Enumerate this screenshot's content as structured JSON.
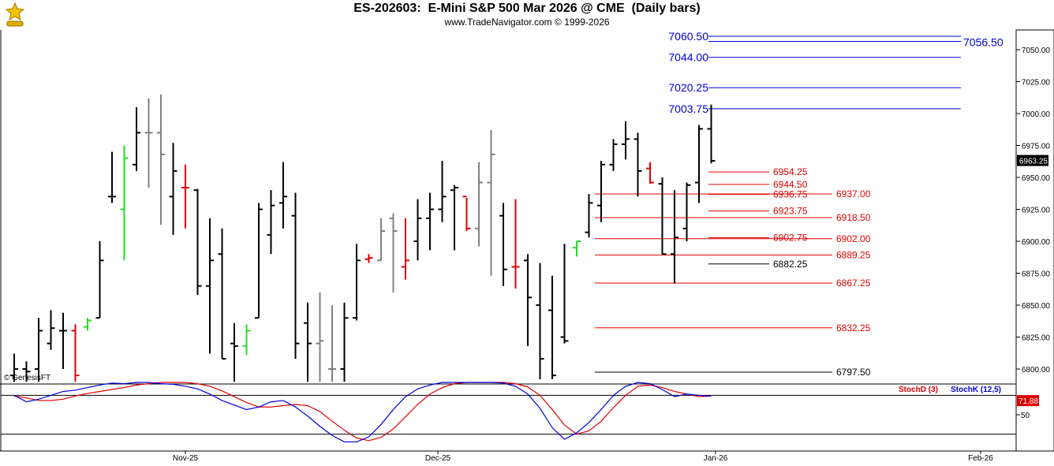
{
  "header": {
    "title": "ES-202603:  E-Mini S&P 500 Mar 2026 @ CME  (Daily bars)",
    "subtitle": "www.TradeNavigator.com © 1999-2026",
    "logo": "trade-navigator-logo"
  },
  "watermark": "© GenesisFT",
  "colors": {
    "up_bar": "#000000",
    "down_bar": "#000000",
    "neutral_bar": "#808080",
    "green_bar": "#22dd22",
    "red_bar": "#e00000",
    "blue_level": "#0000dd",
    "red_level": "#e00000",
    "black_level": "#000000",
    "stochD": "#dd0000",
    "stochK": "#0000dd"
  },
  "chart_data": [
    {
      "type": "ohlc",
      "title": "ES-202603:  E-Mini S&P 500 Mar 2026 @ CME  (Daily bars)",
      "ylim": [
        6790,
        7060
      ],
      "y_ticks": [
        "6800.00",
        "6825.00",
        "6850.00",
        "6875.00",
        "6900.00",
        "6925.00",
        "6950.00",
        "6975.00",
        "7000.00",
        "7025.00",
        "7050.00"
      ],
      "x_tick_labels": [
        "Nov-25",
        "Dec-25",
        "Jan-26",
        "Feb-26"
      ],
      "last_price": "6963.25",
      "bars": [
        {
          "h": 6812,
          "l": 6790,
          "o": 6795,
          "c": 6800,
          "color": "black"
        },
        {
          "h": 6806,
          "l": 6790,
          "o": 6800,
          "c": 6798,
          "color": "black"
        },
        {
          "h": 6840,
          "l": 6790,
          "o": 6800,
          "c": 6830,
          "color": "black"
        },
        {
          "h": 6846,
          "l": 6815,
          "o": 6820,
          "c": 6832,
          "color": "black"
        },
        {
          "h": 6844,
          "l": 6800,
          "o": 6830,
          "c": 6830,
          "color": "black"
        },
        {
          "h": 6835,
          "l": 6790,
          "o": 6830,
          "c": 6795,
          "color": "red"
        },
        {
          "h": 6840,
          "l": 6830,
          "o": 6833,
          "c": 6838,
          "color": "green"
        },
        {
          "h": 6900,
          "l": 6840,
          "o": 6840,
          "c": 6885,
          "color": "black"
        },
        {
          "h": 6970,
          "l": 6930,
          "o": 6935,
          "c": 6935,
          "color": "black"
        },
        {
          "h": 6975,
          "l": 6885,
          "o": 6925,
          "c": 6965,
          "color": "green"
        },
        {
          "h": 7005,
          "l": 6955,
          "o": 6960,
          "c": 6985,
          "color": "black"
        },
        {
          "h": 7012,
          "l": 6942,
          "o": 6985,
          "c": 6985,
          "color": "gray"
        },
        {
          "h": 7015,
          "l": 6913,
          "o": 6985,
          "c": 6968,
          "color": "gray"
        },
        {
          "h": 6977,
          "l": 6905,
          "o": 6935,
          "c": 6955,
          "color": "black"
        },
        {
          "h": 6960,
          "l": 6910,
          "o": 6942,
          "c": 6942,
          "color": "red"
        },
        {
          "h": 6941,
          "l": 6858,
          "o": 6940,
          "c": 6865,
          "color": "black"
        },
        {
          "h": 6918,
          "l": 6812,
          "o": 6865,
          "c": 6885,
          "color": "black"
        },
        {
          "h": 6910,
          "l": 6808,
          "o": 6890,
          "c": 6808,
          "color": "black"
        },
        {
          "h": 6836,
          "l": 6790,
          "o": 6820,
          "c": 6818,
          "color": "black"
        },
        {
          "h": 6835,
          "l": 6811,
          "o": 6818,
          "c": 6830,
          "color": "green"
        },
        {
          "h": 6930,
          "l": 6840,
          "o": 6840,
          "c": 6925,
          "color": "black"
        },
        {
          "h": 6940,
          "l": 6890,
          "o": 6905,
          "c": 6928,
          "color": "black"
        },
        {
          "h": 6962,
          "l": 6910,
          "o": 6930,
          "c": 6935,
          "color": "black"
        },
        {
          "h": 6938,
          "l": 6808,
          "o": 6920,
          "c": 6820,
          "color": "black"
        },
        {
          "h": 6852,
          "l": 6790,
          "o": 6836,
          "c": 6820,
          "color": "black"
        },
        {
          "h": 6860,
          "l": 6790,
          "o": 6820,
          "c": 6822,
          "color": "gray"
        },
        {
          "h": 6850,
          "l": 6790,
          "o": 6800,
          "c": 6800,
          "color": "gray"
        },
        {
          "h": 6852,
          "l": 6790,
          "o": 6800,
          "c": 6840,
          "color": "black"
        },
        {
          "h": 6898,
          "l": 6838,
          "o": 6840,
          "c": 6885,
          "color": "black"
        },
        {
          "h": 6890,
          "l": 6883,
          "o": 6886,
          "c": 6887,
          "color": "red"
        },
        {
          "h": 6918,
          "l": 6885,
          "o": 6885,
          "c": 6908,
          "color": "gray"
        },
        {
          "h": 6922,
          "l": 6860,
          "o": 6918,
          "c": 6908,
          "color": "gray"
        },
        {
          "h": 6918,
          "l": 6870,
          "o": 6880,
          "c": 6885,
          "color": "red"
        },
        {
          "h": 6933,
          "l": 6885,
          "o": 6900,
          "c": 6918,
          "color": "black"
        },
        {
          "h": 6938,
          "l": 6893,
          "o": 6918,
          "c": 6925,
          "color": "black"
        },
        {
          "h": 6963,
          "l": 6915,
          "o": 6925,
          "c": 6935,
          "color": "black"
        },
        {
          "h": 6944,
          "l": 6893,
          "o": 6940,
          "c": 6942,
          "color": "black"
        },
        {
          "h": 6934,
          "l": 6908,
          "o": 6935,
          "c": 6910,
          "color": "red"
        },
        {
          "h": 6962,
          "l": 6896,
          "o": 6910,
          "c": 6946,
          "color": "gray"
        },
        {
          "h": 6987,
          "l": 6873,
          "o": 6946,
          "c": 6968,
          "color": "gray"
        },
        {
          "h": 6930,
          "l": 6865,
          "o": 6920,
          "c": 6878,
          "color": "black"
        },
        {
          "h": 6933,
          "l": 6863,
          "o": 6880,
          "c": 6880,
          "color": "red"
        },
        {
          "h": 6890,
          "l": 6818,
          "o": 6885,
          "c": 6856,
          "color": "black"
        },
        {
          "h": 6883,
          "l": 6792,
          "o": 6850,
          "c": 6808,
          "color": "black"
        },
        {
          "h": 6873,
          "l": 6792,
          "o": 6846,
          "c": 6795,
          "color": "black"
        },
        {
          "h": 6898,
          "l": 6820,
          "o": 6825,
          "c": 6822,
          "color": "black"
        },
        {
          "h": 6900,
          "l": 6888,
          "o": 6895,
          "c": 6900,
          "color": "green"
        },
        {
          "h": 6937,
          "l": 6903,
          "o": 6907,
          "c": 6930,
          "color": "black"
        },
        {
          "h": 6963,
          "l": 6915,
          "o": 6928,
          "c": 6960,
          "color": "black"
        },
        {
          "h": 6980,
          "l": 6955,
          "o": 6960,
          "c": 6976,
          "color": "black"
        },
        {
          "h": 6994,
          "l": 6964,
          "o": 6976,
          "c": 6980,
          "color": "black"
        },
        {
          "h": 6985,
          "l": 6935,
          "o": 6980,
          "c": 6955,
          "color": "black"
        },
        {
          "h": 6962,
          "l": 6945,
          "o": 6957,
          "c": 6946,
          "color": "red"
        },
        {
          "h": 6950,
          "l": 6890,
          "o": 6945,
          "c": 6890,
          "color": "black"
        },
        {
          "h": 6940,
          "l": 6867,
          "o": 6890,
          "c": 6903,
          "color": "black"
        },
        {
          "h": 6946,
          "l": 6900,
          "o": 6910,
          "c": 6944,
          "color": "black"
        },
        {
          "h": 6991,
          "l": 6930,
          "o": 6946,
          "c": 6988,
          "color": "black"
        },
        {
          "h": 7007,
          "l": 6961,
          "o": 6988,
          "c": 6963,
          "color": "black"
        }
      ],
      "levels": [
        {
          "label": "7060.50",
          "value": 7060.5,
          "color": "blue"
        },
        {
          "label": "7056.50",
          "value": 7056.5,
          "color": "blue"
        },
        {
          "label": "7044.00",
          "value": 7044.0,
          "color": "blue"
        },
        {
          "label": "7020.25",
          "value": 7020.25,
          "color": "blue"
        },
        {
          "label": "7003.75",
          "value": 7003.75,
          "color": "blue"
        },
        {
          "label": "6954.25",
          "value": 6954.25,
          "color": "red"
        },
        {
          "label": "6944.50",
          "value": 6944.5,
          "color": "red"
        },
        {
          "label": "6936.75",
          "value": 6936.75,
          "color": "red"
        },
        {
          "label": "6937.00",
          "value": 6937.0,
          "color": "red"
        },
        {
          "label": "6923.75",
          "value": 6923.75,
          "color": "red"
        },
        {
          "label": "6918.50",
          "value": 6918.5,
          "color": "red"
        },
        {
          "label": "6902.75",
          "value": 6902.75,
          "color": "red"
        },
        {
          "label": "6902.00",
          "value": 6902.0,
          "color": "red"
        },
        {
          "label": "6889.25",
          "value": 6889.25,
          "color": "red"
        },
        {
          "label": "6882.25",
          "value": 6882.25,
          "color": "black"
        },
        {
          "label": "6867.25",
          "value": 6867.25,
          "color": "red"
        },
        {
          "label": "6832.25",
          "value": 6832.25,
          "color": "red"
        },
        {
          "label": "6797.50",
          "value": 6797.5,
          "color": "black"
        }
      ]
    },
    {
      "type": "line",
      "ylim": [
        0,
        100
      ],
      "y_ticks": [
        "50"
      ],
      "last_value": "71.88",
      "reference_lines": [
        80,
        20
      ],
      "series": [
        {
          "name": "StochD (3)",
          "color": "red",
          "values": [
            79,
            76,
            72,
            72,
            74,
            79,
            83,
            86,
            89,
            92,
            96,
            98,
            100,
            100,
            100,
            98,
            94,
            87,
            78,
            69,
            62,
            62,
            64,
            66,
            64,
            55,
            40,
            26,
            14,
            10,
            15,
            28,
            47,
            66,
            82,
            92,
            98,
            100,
            100,
            100,
            100,
            98,
            93,
            80,
            58,
            34,
            20,
            25,
            40,
            61,
            80,
            94,
            96,
            92,
            86,
            82,
            78,
            79
          ]
        },
        {
          "name": "StochK (12,5)",
          "color": "blue",
          "values": [
            80,
            70,
            74,
            80,
            86,
            88,
            92,
            96,
            99,
            98,
            100,
            100,
            98,
            97,
            94,
            90,
            82,
            72,
            65,
            58,
            62,
            70,
            72,
            62,
            48,
            32,
            18,
            8,
            8,
            16,
            35,
            58,
            78,
            90,
            96,
            100,
            100,
            100,
            100,
            100,
            99,
            94,
            82,
            60,
            30,
            12,
            22,
            38,
            58,
            80,
            94,
            100,
            98,
            89,
            78,
            82,
            80,
            79
          ]
        }
      ]
    }
  ]
}
